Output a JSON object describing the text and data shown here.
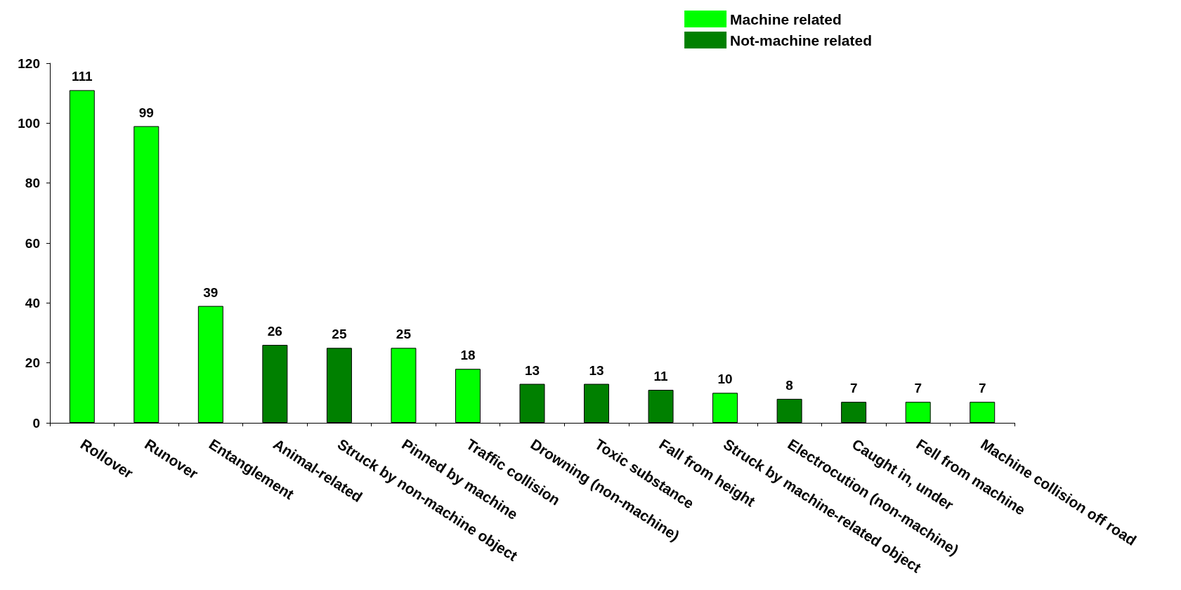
{
  "chart_data": {
    "type": "bar",
    "categories": [
      "Rollover",
      "Runover",
      "Entanglement",
      "Animal-related",
      "Struck by non-machine object",
      "Pinned by machine",
      "Traffic collision",
      "Drowning (non-machine)",
      "Toxic substance",
      "Fall from height",
      "Struck by machine-related object",
      "Electrocution (non-machine)",
      "Caught in, under",
      "Fell from machine",
      "Machine collision off road"
    ],
    "series": [
      {
        "name": "Machine related",
        "color": "#00ff00",
        "values": [
          111,
          99,
          39,
          null,
          null,
          25,
          18,
          null,
          null,
          null,
          10,
          null,
          null,
          7,
          7
        ]
      },
      {
        "name": "Not-machine related",
        "color": "#008000",
        "values": [
          null,
          null,
          null,
          26,
          25,
          null,
          null,
          13,
          13,
          11,
          null,
          8,
          7,
          null,
          null
        ]
      }
    ],
    "ylim": [
      0,
      120
    ],
    "yticks": [
      0,
      20,
      40,
      60,
      80,
      100,
      120
    ],
    "grid": false,
    "legend": "top right",
    "data_labels": true
  }
}
